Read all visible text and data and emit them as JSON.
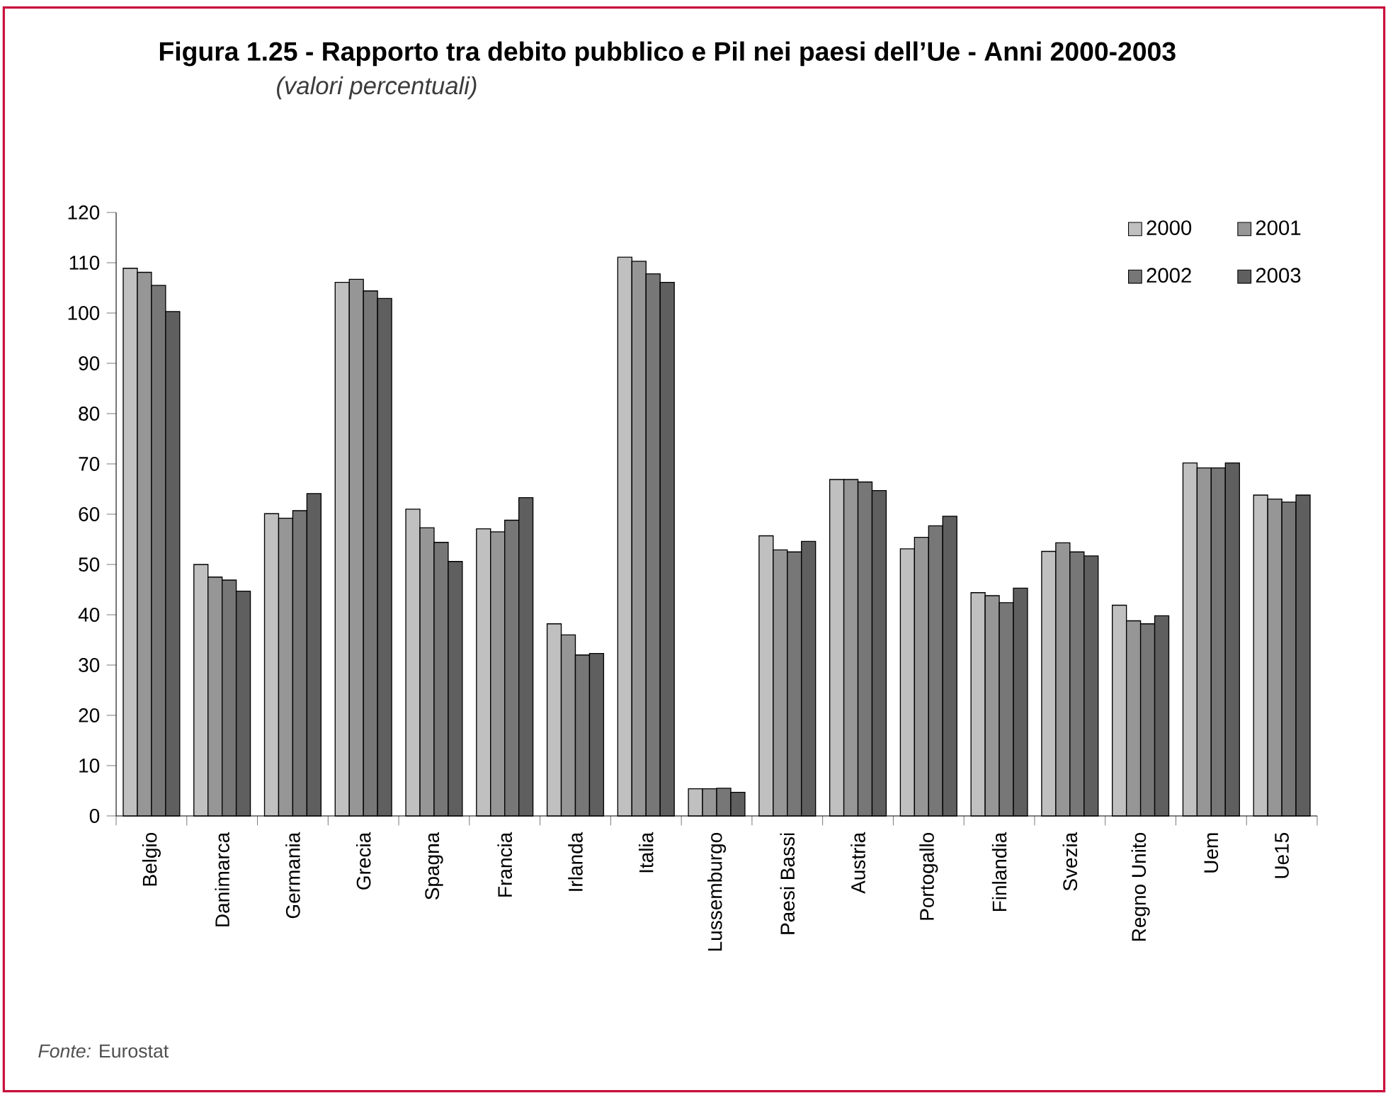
{
  "chart_data": {
    "type": "bar",
    "title": "Figura 1.25 - Rapporto tra debito pubblico e Pil nei paesi dell’Ue - Anni 2000-2003",
    "subtitle": "(valori percentuali)",
    "annotations": [
      "*Fonte:* Eurostat"
    ],
    "categories": [
      "Belgio",
      "Danimarca",
      "Germania",
      "Grecia",
      "Spagna",
      "Francia",
      "Irlanda",
      "Italia",
      "Lussemburgo",
      "Paesi Bassi",
      "Austria",
      "Portogallo",
      "Finlandia",
      "Svezia",
      "Regno Unito",
      "Uem",
      "Ue15"
    ],
    "series": [
      {
        "name": "2000",
        "color": "#c0c0c0",
        "values": [
          108.9,
          50.0,
          60.1,
          106.1,
          61.0,
          57.1,
          38.2,
          111.1,
          5.4,
          55.7,
          66.9,
          53.1,
          44.4,
          52.6,
          41.9,
          70.2,
          63.8
        ]
      },
      {
        "name": "2001",
        "color": "#969696",
        "values": [
          108.1,
          47.5,
          59.2,
          106.7,
          57.3,
          56.5,
          36.0,
          110.3,
          5.4,
          52.9,
          66.9,
          55.4,
          43.8,
          54.3,
          38.8,
          69.2,
          63.0
        ]
      },
      {
        "name": "2002",
        "color": "#777777",
        "values": [
          105.5,
          46.9,
          60.7,
          104.4,
          54.4,
          58.8,
          32.0,
          107.8,
          5.5,
          52.5,
          66.4,
          57.7,
          42.4,
          52.5,
          38.2,
          69.2,
          62.4
        ]
      },
      {
        "name": "2003",
        "color": "#5f5f5f",
        "values": [
          100.3,
          44.7,
          64.1,
          102.9,
          50.6,
          63.3,
          32.3,
          106.1,
          4.7,
          54.6,
          64.7,
          59.6,
          45.3,
          51.7,
          39.8,
          70.2,
          63.8
        ]
      }
    ],
    "ylim": [
      0,
      120
    ],
    "yticks": [
      0,
      10,
      20,
      30,
      40,
      50,
      60,
      70,
      80,
      90,
      100,
      110,
      120
    ],
    "legend": "top right"
  }
}
